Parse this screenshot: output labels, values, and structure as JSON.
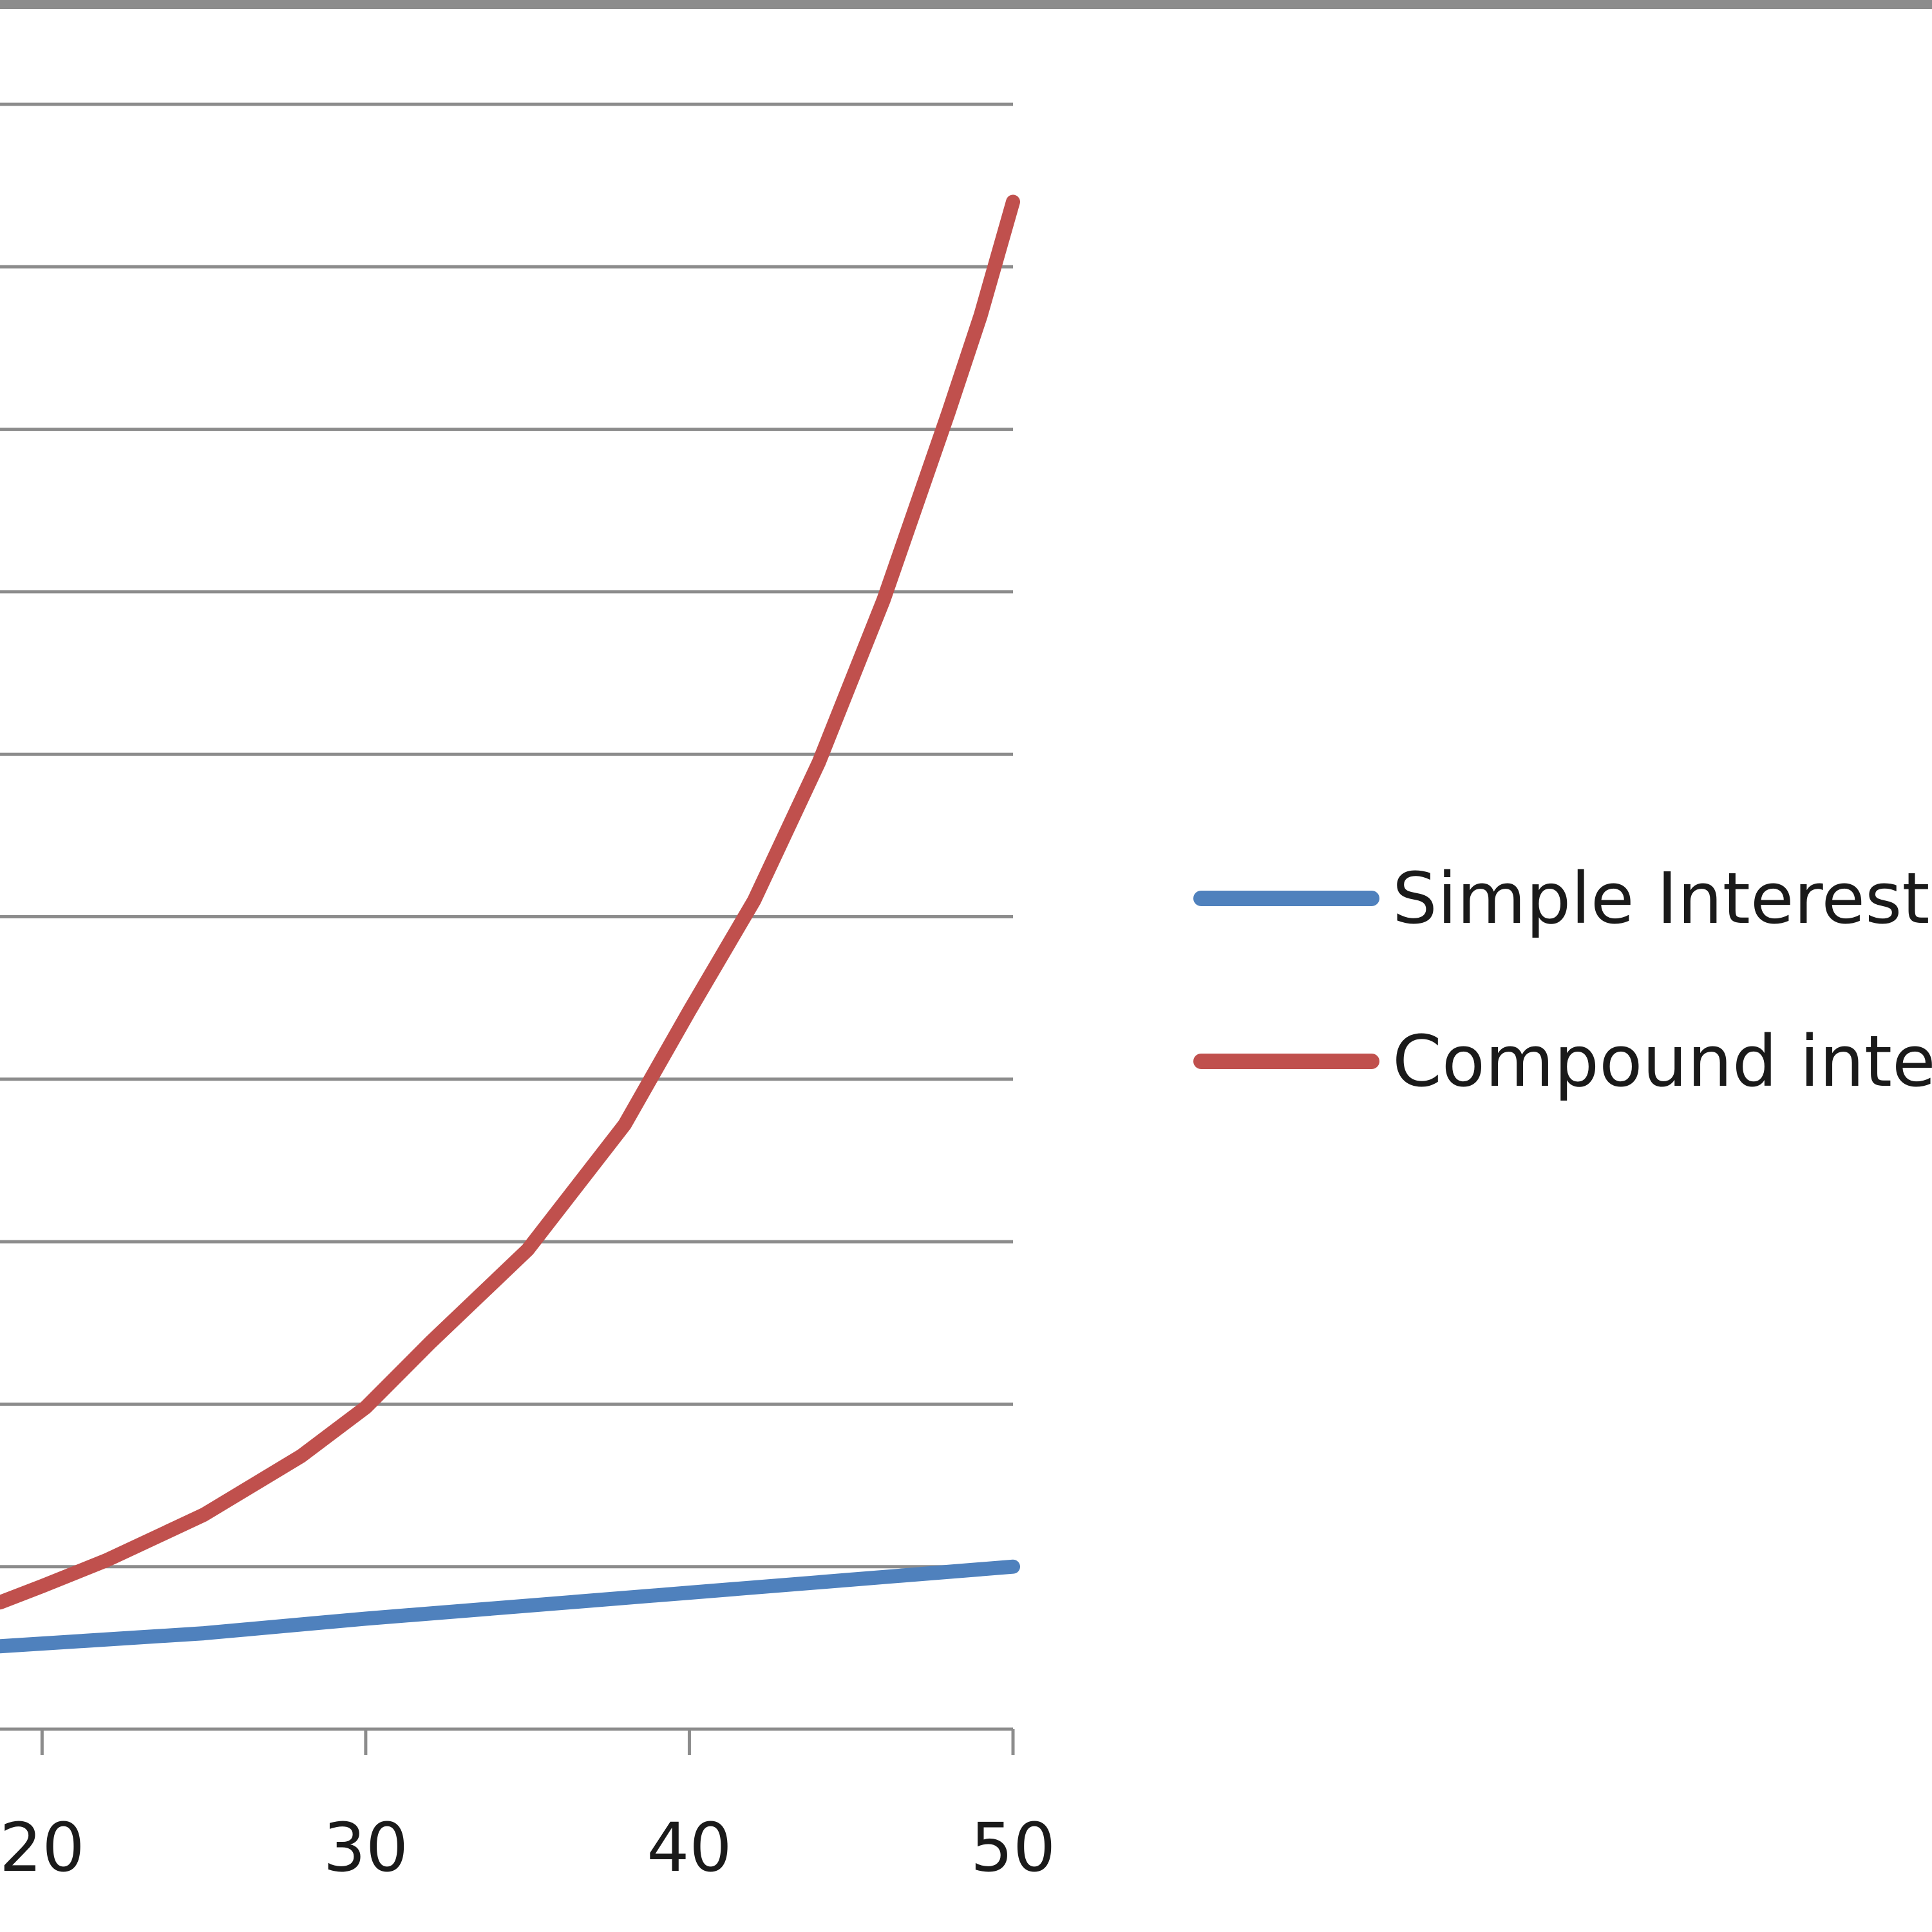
{
  "chart_data": {
    "type": "line",
    "title": "",
    "xlabel": "",
    "ylabel": "",
    "x_ticks": [
      "20",
      "30",
      "40",
      "50"
    ],
    "xlim": [
      18.7,
      50
    ],
    "ylim": [
      0,
      10
    ],
    "y_gridlines": [
      1,
      2,
      3,
      4,
      5,
      6,
      7,
      8,
      9,
      10
    ],
    "grid": true,
    "legend_position": "right",
    "series": [
      {
        "name": "Simple Interest",
        "color": "#4f81bd",
        "x": [
          18.7,
          25,
          30,
          35,
          40,
          45,
          50
        ],
        "y": [
          0.51,
          0.59,
          0.68,
          0.76,
          0.84,
          0.92,
          1.0
        ]
      },
      {
        "name": "Compound inte",
        "color": "#c0504d",
        "x": [
          18.7,
          20,
          22,
          25,
          28,
          30,
          32,
          35,
          38,
          40,
          42,
          44,
          46,
          48,
          49,
          50
        ],
        "y": [
          0.78,
          0.88,
          1.04,
          1.32,
          1.68,
          1.98,
          2.38,
          2.95,
          3.72,
          4.42,
          5.1,
          5.95,
          6.95,
          8.1,
          8.7,
          9.4
        ]
      }
    ]
  }
}
